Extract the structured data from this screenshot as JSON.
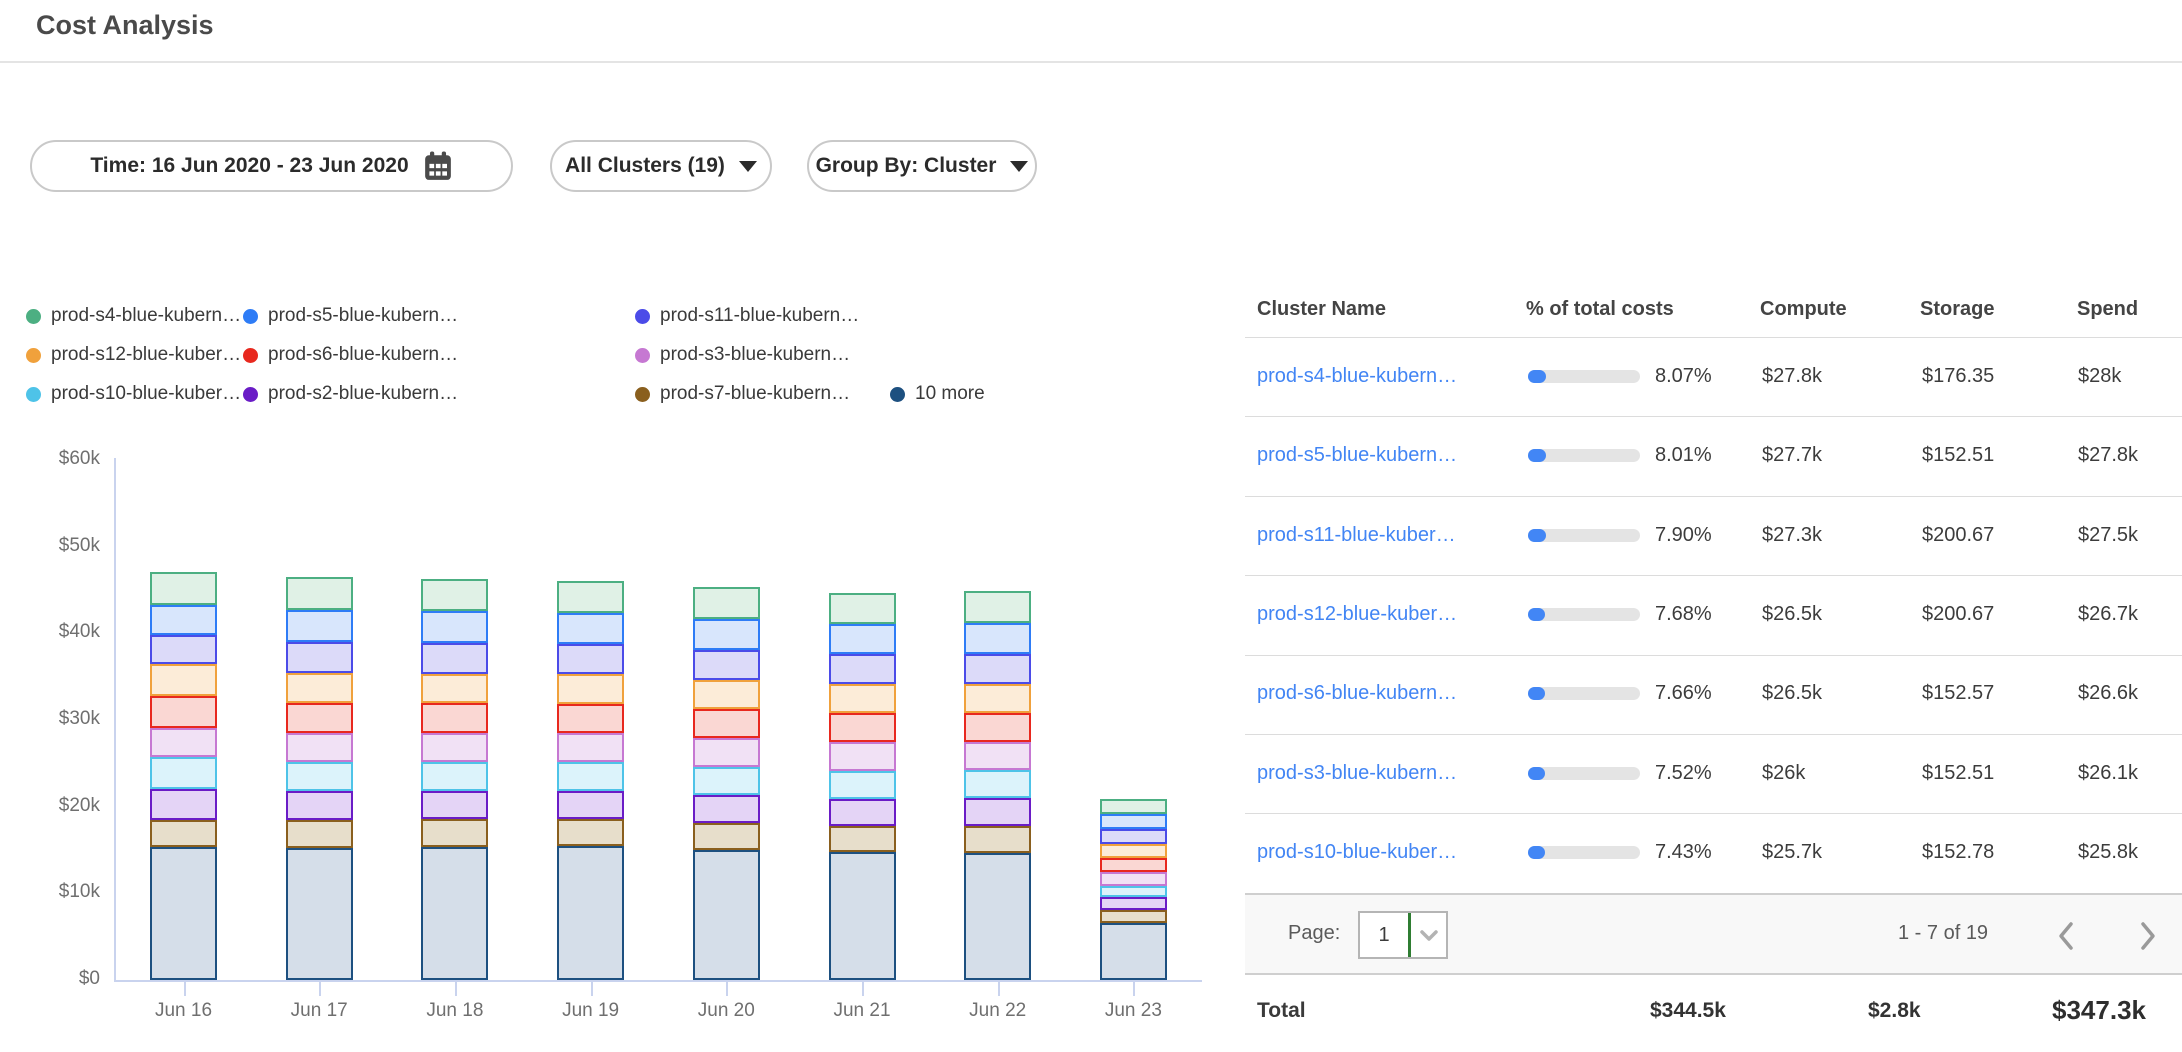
{
  "page": {
    "title": "Cost Analysis"
  },
  "filters": {
    "time": "Time: 16 Jun 2020 - 23 Jun 2020",
    "clusters": "All Clusters (19)",
    "group_by": "Group By: Cluster"
  },
  "chart_data": {
    "type": "bar",
    "stacked": true,
    "x": [
      "Jun 16",
      "Jun 17",
      "Jun 18",
      "Jun 19",
      "Jun 20",
      "Jun 21",
      "Jun 22",
      "Jun 23"
    ],
    "y_tick_labels": [
      "$0",
      "$10k",
      "$20k",
      "$30k",
      "$40k",
      "$50k",
      "$60k"
    ],
    "y_tick_values_k": [
      0,
      10,
      20,
      30,
      40,
      50,
      60
    ],
    "ylim_k": [
      0,
      60
    ],
    "value_unit": "USD thousands per day",
    "legend_order": [
      {
        "label": "prod-s4-blue-kubern…",
        "color": "#4caf82"
      },
      {
        "label": "prod-s5-blue-kubern…",
        "color": "#2e7cf6"
      },
      {
        "label": "prod-s11-blue-kubern…",
        "color": "#4b4be8"
      },
      {
        "label": "prod-s12-blue-kuber…",
        "color": "#f0a13c"
      },
      {
        "label": "prod-s6-blue-kubern…",
        "color": "#e8281e"
      },
      {
        "label": "prod-s3-blue-kubern…",
        "color": "#c678d2"
      },
      {
        "label": "prod-s10-blue-kuber…",
        "color": "#4ec3e8"
      },
      {
        "label": "prod-s2-blue-kubern…",
        "color": "#6a1cc6"
      },
      {
        "label": "prod-s7-blue-kubern…",
        "color": "#8a5f1e"
      },
      {
        "label": "10 more",
        "color": "#1d5080"
      }
    ],
    "series_bottom_to_top": [
      {
        "name": "10 more",
        "stroke": "#1d5080",
        "fill": "#d5dee9",
        "values_k": [
          15.3,
          15.2,
          15.3,
          15.5,
          15.0,
          14.8,
          14.7,
          6.6
        ]
      },
      {
        "name": "prod-s7-blue-kubern…",
        "stroke": "#8a5f1e",
        "fill": "#e7decb",
        "values_k": [
          3.1,
          3.2,
          3.2,
          3.1,
          3.1,
          3.0,
          3.1,
          1.5
        ]
      },
      {
        "name": "prod-s2-blue-kubern…",
        "stroke": "#6a1cc6",
        "fill": "#e4d4f6",
        "values_k": [
          3.6,
          3.3,
          3.2,
          3.2,
          3.2,
          3.1,
          3.2,
          1.5
        ]
      },
      {
        "name": "prod-s10-blue-kuber…",
        "stroke": "#4ec3e8",
        "fill": "#dcf3fb",
        "values_k": [
          3.7,
          3.3,
          3.3,
          3.3,
          3.2,
          3.2,
          3.2,
          1.3
        ]
      },
      {
        "name": "prod-s3-blue-kubern…",
        "stroke": "#c678d2",
        "fill": "#f1e1f5",
        "values_k": [
          3.3,
          3.4,
          3.4,
          3.3,
          3.3,
          3.3,
          3.2,
          1.6
        ]
      },
      {
        "name": "prod-s6-blue-kubern…",
        "stroke": "#e8281e",
        "fill": "#fad7d3",
        "values_k": [
          3.7,
          3.5,
          3.5,
          3.4,
          3.4,
          3.3,
          3.4,
          1.6
        ]
      },
      {
        "name": "prod-s12-blue-kuber…",
        "stroke": "#f0a13c",
        "fill": "#fcecd8",
        "values_k": [
          3.7,
          3.5,
          3.4,
          3.5,
          3.4,
          3.4,
          3.3,
          1.6
        ]
      },
      {
        "name": "prod-s11-blue-kubern…",
        "stroke": "#4b4be8",
        "fill": "#dcdaf9",
        "values_k": [
          3.4,
          3.6,
          3.6,
          3.5,
          3.5,
          3.5,
          3.5,
          1.7
        ]
      },
      {
        "name": "prod-s5-blue-kubern…",
        "stroke": "#2e7cf6",
        "fill": "#d8e6fc",
        "values_k": [
          3.5,
          3.7,
          3.7,
          3.6,
          3.6,
          3.5,
          3.6,
          1.7
        ]
      },
      {
        "name": "prod-s4-blue-kubern…",
        "stroke": "#4caf82",
        "fill": "#e0f1e6",
        "values_k": [
          3.8,
          3.8,
          3.7,
          3.7,
          3.7,
          3.6,
          3.7,
          1.7
        ]
      }
    ]
  },
  "table": {
    "columns": [
      "Cluster Name",
      "% of total costs",
      "Compute",
      "Storage",
      "Spend"
    ],
    "rows": [
      {
        "name": "prod-s4-blue-kubern…",
        "pct": "8.07%",
        "pct_value": 8.07,
        "compute": "$27.8k",
        "storage": "$176.35",
        "spend": "$28k"
      },
      {
        "name": "prod-s5-blue-kubern…",
        "pct": "8.01%",
        "pct_value": 8.01,
        "compute": "$27.7k",
        "storage": "$152.51",
        "spend": "$27.8k"
      },
      {
        "name": "prod-s11-blue-kuber…",
        "pct": "7.90%",
        "pct_value": 7.9,
        "compute": "$27.3k",
        "storage": "$200.67",
        "spend": "$27.5k"
      },
      {
        "name": "prod-s12-blue-kuber…",
        "pct": "7.68%",
        "pct_value": 7.68,
        "compute": "$26.5k",
        "storage": "$200.67",
        "spend": "$26.7k"
      },
      {
        "name": "prod-s6-blue-kubern…",
        "pct": "7.66%",
        "pct_value": 7.66,
        "compute": "$26.5k",
        "storage": "$152.57",
        "spend": "$26.6k"
      },
      {
        "name": "prod-s3-blue-kubern…",
        "pct": "7.52%",
        "pct_value": 7.52,
        "compute": "$26k",
        "storage": "$152.51",
        "spend": "$26.1k"
      },
      {
        "name": "prod-s10-blue-kuber…",
        "pct": "7.43%",
        "pct_value": 7.43,
        "compute": "$25.7k",
        "storage": "$152.78",
        "spend": "$25.8k"
      }
    ],
    "pagination": {
      "page_label": "Page:",
      "page": "1",
      "range": "1 - 7 of 19"
    },
    "total": {
      "label": "Total",
      "compute": "$344.5k",
      "storage": "$2.8k",
      "spend": "$347.3k"
    }
  }
}
